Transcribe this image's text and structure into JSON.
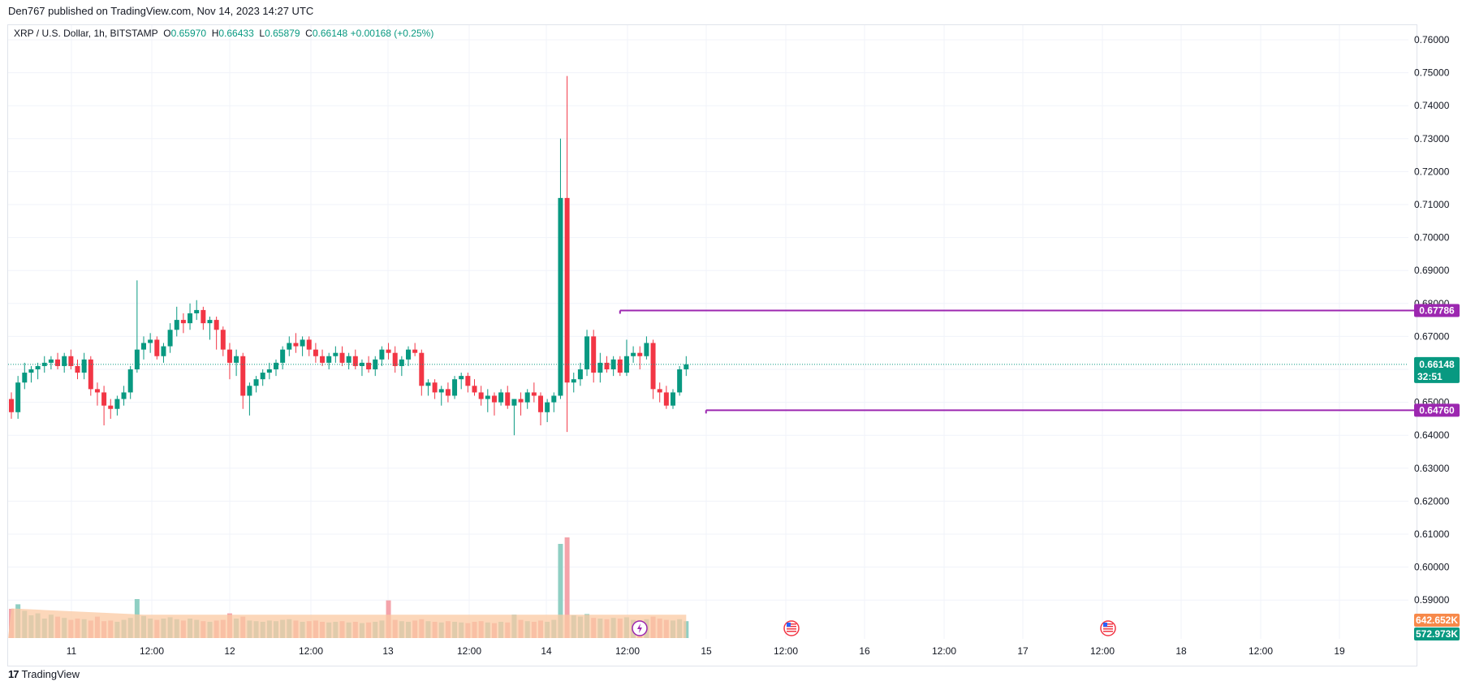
{
  "header": {
    "published": "Den767 published on TradingView.com, Nov 14, 2023 14:27 UTC"
  },
  "legend": {
    "symbol": "XRP / U.S. Dollar, 1h, BITSTAMP",
    "o_label": "O",
    "o_value": "0.65970",
    "h_label": "H",
    "h_value": "0.66433",
    "l_label": "L",
    "l_value": "0.65879",
    "c_label": "C",
    "c_value": "0.66148",
    "change": "+0.00168 (+0.25%)"
  },
  "footer": {
    "brand": "TradingView",
    "logo": "17"
  },
  "colors": {
    "up": "#089981",
    "down": "#f23645",
    "vol_up": "#8fcfc3",
    "vol_down": "#f4a3aa",
    "vol_ma": "#fbc9a3",
    "level": "#9c27b0",
    "grid": "#f0f3fa",
    "price_tag": "#089981",
    "vol_tag": "#f7894a"
  },
  "price_tags": {
    "last_price": "0.66148",
    "countdown": "32:51",
    "resistance": "0.67786",
    "support": "0.64760",
    "vol_ma": "642.652K",
    "volume": "572.973K"
  },
  "events": {
    "lightning_icon": "lightning-icon",
    "flag_icons": [
      "us-flag-icon",
      "us-flag-icon"
    ]
  },
  "chart_data": {
    "type": "candlestick",
    "title": "XRP / U.S. Dollar, 1h, BITSTAMP",
    "ylim": [
      0.585,
      0.765
    ],
    "y_ticks": [
      "0.76000",
      "0.75000",
      "0.74000",
      "0.73000",
      "0.72000",
      "0.71000",
      "0.70000",
      "0.69000",
      "0.68000",
      "0.67000",
      "0.66000",
      "0.65000",
      "0.64000",
      "0.63000",
      "0.62000",
      "0.61000",
      "0.60000",
      "0.59000"
    ],
    "x_ticks": [
      "11",
      "12:00",
      "12",
      "12:00",
      "13",
      "12:00",
      "14",
      "12:00",
      "15",
      "12:00",
      "16",
      "12:00",
      "17",
      "12:00",
      "18",
      "12:00",
      "19"
    ],
    "grid": true,
    "horizontal_levels": [
      {
        "name": "resistance",
        "value": 0.67786,
        "from_bar": 92
      },
      {
        "name": "support",
        "value": 0.6476,
        "from_bar": 105
      }
    ],
    "candles": [
      [
        0.651,
        0.653,
        0.645,
        0.647
      ],
      [
        0.647,
        0.658,
        0.645,
        0.656
      ],
      [
        0.656,
        0.662,
        0.654,
        0.659
      ],
      [
        0.659,
        0.661,
        0.656,
        0.66
      ],
      [
        0.66,
        0.662,
        0.657,
        0.661
      ],
      [
        0.661,
        0.664,
        0.659,
        0.662
      ],
      [
        0.662,
        0.664,
        0.66,
        0.663
      ],
      [
        0.663,
        0.665,
        0.66,
        0.661
      ],
      [
        0.661,
        0.665,
        0.659,
        0.664
      ],
      [
        0.664,
        0.666,
        0.66,
        0.661
      ],
      [
        0.661,
        0.663,
        0.657,
        0.659
      ],
      [
        0.659,
        0.665,
        0.657,
        0.663
      ],
      [
        0.663,
        0.664,
        0.652,
        0.654
      ],
      [
        0.654,
        0.656,
        0.649,
        0.653
      ],
      [
        0.653,
        0.655,
        0.643,
        0.649
      ],
      [
        0.649,
        0.651,
        0.645,
        0.648
      ],
      [
        0.648,
        0.652,
        0.646,
        0.651
      ],
      [
        0.651,
        0.655,
        0.649,
        0.653
      ],
      [
        0.653,
        0.661,
        0.651,
        0.66
      ],
      [
        0.66,
        0.687,
        0.659,
        0.666
      ],
      [
        0.666,
        0.67,
        0.663,
        0.668
      ],
      [
        0.668,
        0.671,
        0.665,
        0.669
      ],
      [
        0.669,
        0.67,
        0.663,
        0.664
      ],
      [
        0.664,
        0.668,
        0.662,
        0.667
      ],
      [
        0.667,
        0.674,
        0.665,
        0.672
      ],
      [
        0.672,
        0.679,
        0.67,
        0.675
      ],
      [
        0.675,
        0.677,
        0.671,
        0.674
      ],
      [
        0.674,
        0.68,
        0.672,
        0.677
      ],
      [
        0.677,
        0.681,
        0.675,
        0.678
      ],
      [
        0.678,
        0.679,
        0.672,
        0.674
      ],
      [
        0.674,
        0.676,
        0.669,
        0.675
      ],
      [
        0.675,
        0.676,
        0.666,
        0.672
      ],
      [
        0.672,
        0.673,
        0.664,
        0.666
      ],
      [
        0.666,
        0.668,
        0.657,
        0.662
      ],
      [
        0.662,
        0.666,
        0.658,
        0.664
      ],
      [
        0.664,
        0.665,
        0.648,
        0.652
      ],
      [
        0.652,
        0.656,
        0.646,
        0.655
      ],
      [
        0.655,
        0.658,
        0.653,
        0.657
      ],
      [
        0.657,
        0.66,
        0.655,
        0.659
      ],
      [
        0.659,
        0.662,
        0.657,
        0.66
      ],
      [
        0.66,
        0.663,
        0.658,
        0.662
      ],
      [
        0.662,
        0.667,
        0.66,
        0.666
      ],
      [
        0.666,
        0.67,
        0.664,
        0.668
      ],
      [
        0.668,
        0.671,
        0.665,
        0.667
      ],
      [
        0.667,
        0.67,
        0.664,
        0.669
      ],
      [
        0.669,
        0.67,
        0.664,
        0.666
      ],
      [
        0.666,
        0.668,
        0.662,
        0.664
      ],
      [
        0.664,
        0.666,
        0.661,
        0.662
      ],
      [
        0.662,
        0.665,
        0.66,
        0.664
      ],
      [
        0.664,
        0.667,
        0.662,
        0.665
      ],
      [
        0.665,
        0.667,
        0.661,
        0.662
      ],
      [
        0.662,
        0.665,
        0.66,
        0.664
      ],
      [
        0.664,
        0.666,
        0.66,
        0.661
      ],
      [
        0.661,
        0.663,
        0.658,
        0.662
      ],
      [
        0.662,
        0.664,
        0.659,
        0.66
      ],
      [
        0.66,
        0.664,
        0.658,
        0.663
      ],
      [
        0.663,
        0.667,
        0.661,
        0.666
      ],
      [
        0.666,
        0.668,
        0.663,
        0.665
      ],
      [
        0.665,
        0.667,
        0.659,
        0.661
      ],
      [
        0.661,
        0.664,
        0.658,
        0.663
      ],
      [
        0.663,
        0.667,
        0.661,
        0.666
      ],
      [
        0.666,
        0.668,
        0.664,
        0.665
      ],
      [
        0.665,
        0.666,
        0.652,
        0.655
      ],
      [
        0.655,
        0.657,
        0.652,
        0.656
      ],
      [
        0.656,
        0.657,
        0.651,
        0.653
      ],
      [
        0.653,
        0.655,
        0.649,
        0.654
      ],
      [
        0.654,
        0.656,
        0.65,
        0.652
      ],
      [
        0.652,
        0.658,
        0.651,
        0.657
      ],
      [
        0.657,
        0.659,
        0.654,
        0.658
      ],
      [
        0.658,
        0.659,
        0.653,
        0.655
      ],
      [
        0.655,
        0.657,
        0.652,
        0.653
      ],
      [
        0.653,
        0.655,
        0.649,
        0.651
      ],
      [
        0.651,
        0.654,
        0.647,
        0.652
      ],
      [
        0.652,
        0.653,
        0.646,
        0.65
      ],
      [
        0.65,
        0.654,
        0.649,
        0.653
      ],
      [
        0.653,
        0.655,
        0.648,
        0.649
      ],
      [
        0.649,
        0.651,
        0.64,
        0.651
      ],
      [
        0.651,
        0.653,
        0.646,
        0.65
      ],
      [
        0.65,
        0.654,
        0.648,
        0.653
      ],
      [
        0.653,
        0.656,
        0.65,
        0.652
      ],
      [
        0.652,
        0.653,
        0.643,
        0.647
      ],
      [
        0.647,
        0.651,
        0.644,
        0.65
      ],
      [
        0.65,
        0.653,
        0.647,
        0.652
      ],
      [
        0.652,
        0.73,
        0.651,
        0.712
      ],
      [
        0.712,
        0.749,
        0.641,
        0.656
      ],
      [
        0.656,
        0.659,
        0.653,
        0.657
      ],
      [
        0.657,
        0.662,
        0.655,
        0.66
      ],
      [
        0.66,
        0.672,
        0.658,
        0.67
      ],
      [
        0.67,
        0.672,
        0.656,
        0.659
      ],
      [
        0.659,
        0.665,
        0.656,
        0.662
      ],
      [
        0.662,
        0.664,
        0.659,
        0.66
      ],
      [
        0.66,
        0.664,
        0.658,
        0.663
      ],
      [
        0.663,
        0.664,
        0.658,
        0.659
      ],
      [
        0.659,
        0.669,
        0.658,
        0.664
      ],
      [
        0.664,
        0.667,
        0.662,
        0.665
      ],
      [
        0.665,
        0.667,
        0.66,
        0.664
      ],
      [
        0.664,
        0.67,
        0.663,
        0.668
      ],
      [
        0.668,
        0.669,
        0.651,
        0.654
      ],
      [
        0.654,
        0.656,
        0.65,
        0.653
      ],
      [
        0.653,
        0.655,
        0.648,
        0.649
      ],
      [
        0.649,
        0.654,
        0.648,
        0.653
      ],
      [
        0.653,
        0.661,
        0.652,
        0.66
      ],
      [
        0.66,
        0.664,
        0.658,
        0.6615
      ]
    ],
    "volume_ma_approx": 0.38,
    "volume_relative": [
      0.45,
      0.52,
      0.42,
      0.35,
      0.38,
      0.3,
      0.36,
      0.33,
      0.31,
      0.28,
      0.3,
      0.29,
      0.27,
      0.33,
      0.26,
      0.27,
      0.25,
      0.28,
      0.31,
      0.6,
      0.34,
      0.3,
      0.28,
      0.3,
      0.32,
      0.29,
      0.27,
      0.3,
      0.28,
      0.26,
      0.25,
      0.27,
      0.28,
      0.38,
      0.3,
      0.33,
      0.27,
      0.26,
      0.25,
      0.27,
      0.26,
      0.28,
      0.29,
      0.27,
      0.25,
      0.26,
      0.27,
      0.25,
      0.24,
      0.25,
      0.26,
      0.24,
      0.25,
      0.23,
      0.24,
      0.25,
      0.27,
      0.58,
      0.28,
      0.26,
      0.25,
      0.27,
      0.29,
      0.26,
      0.25,
      0.24,
      0.26,
      0.25,
      0.24,
      0.23,
      0.25,
      0.26,
      0.24,
      0.23,
      0.25,
      0.24,
      0.36,
      0.28,
      0.26,
      0.25,
      0.27,
      0.25,
      0.28,
      1.45,
      1.55,
      0.35,
      0.33,
      0.37,
      0.31,
      0.3,
      0.29,
      0.31,
      0.3,
      0.32,
      0.28,
      0.27,
      0.29,
      0.33,
      0.3,
      0.28,
      0.27,
      0.29,
      0.26
    ]
  }
}
